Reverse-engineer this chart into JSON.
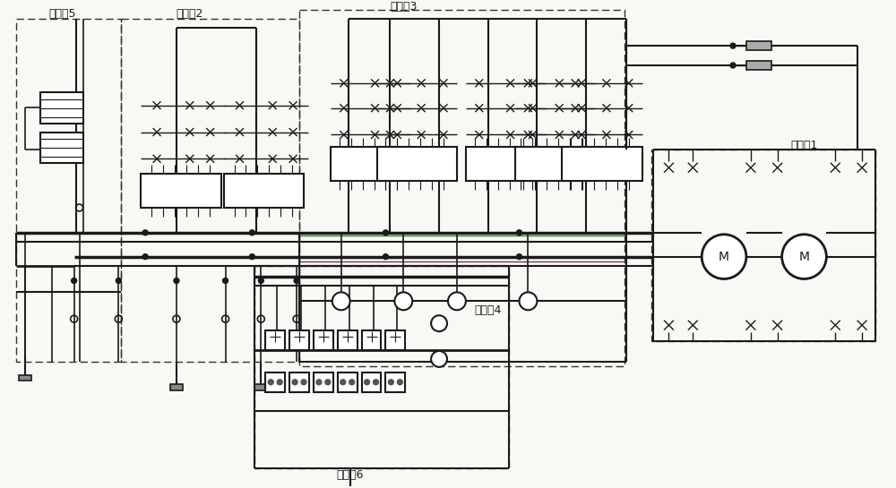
{
  "bg_color": "#f8f8f5",
  "line_color": "#1a1a1a",
  "dashed_box_color": "#333333",
  "green_line_color": "#2d8a2d",
  "purple_line_color": "#6b3a6b",
  "labels": {
    "region1": "局部图1",
    "region2": "局部图2",
    "region3": "局部图3",
    "region4": "局部图4",
    "region5": "局部图5",
    "region6": "局部图6"
  }
}
